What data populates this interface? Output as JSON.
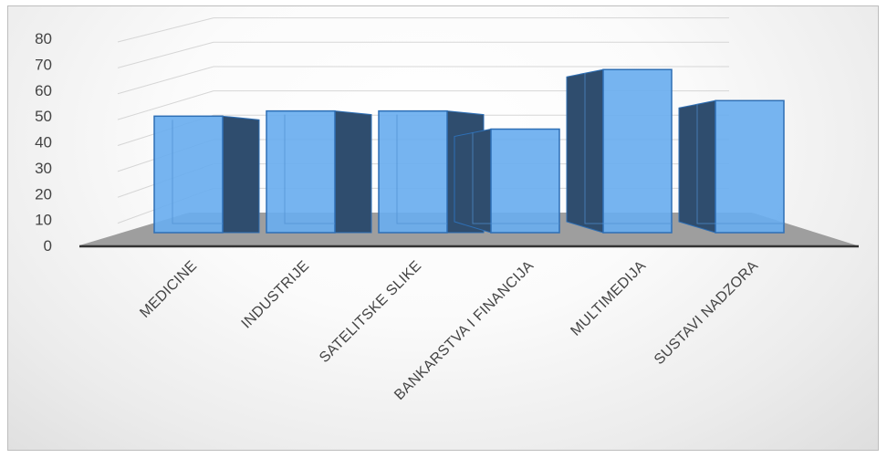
{
  "chart_data": {
    "type": "bar",
    "style": "3d-column",
    "categories": [
      "MEDICINE",
      "INDUSTRIJE",
      "SATELITSKE SLIKE",
      "BANKARSTVA I FINANCIJA",
      "MULTIMEDIJA",
      "SUSTAVI NADZORA"
    ],
    "values": [
      45,
      47,
      47,
      40,
      63,
      51
    ],
    "yticks": [
      "0",
      "10",
      "20",
      "30",
      "40",
      "50",
      "60",
      "70",
      "80"
    ],
    "ylim": [
      0,
      80
    ],
    "grid": true,
    "legend": "none",
    "colors": {
      "bar_front": "#6aaeef",
      "bar_edge": "#2e6fb5",
      "bar_side": "#2f4d6e",
      "floor": "#9e9e9e",
      "axis": "#333333"
    }
  }
}
